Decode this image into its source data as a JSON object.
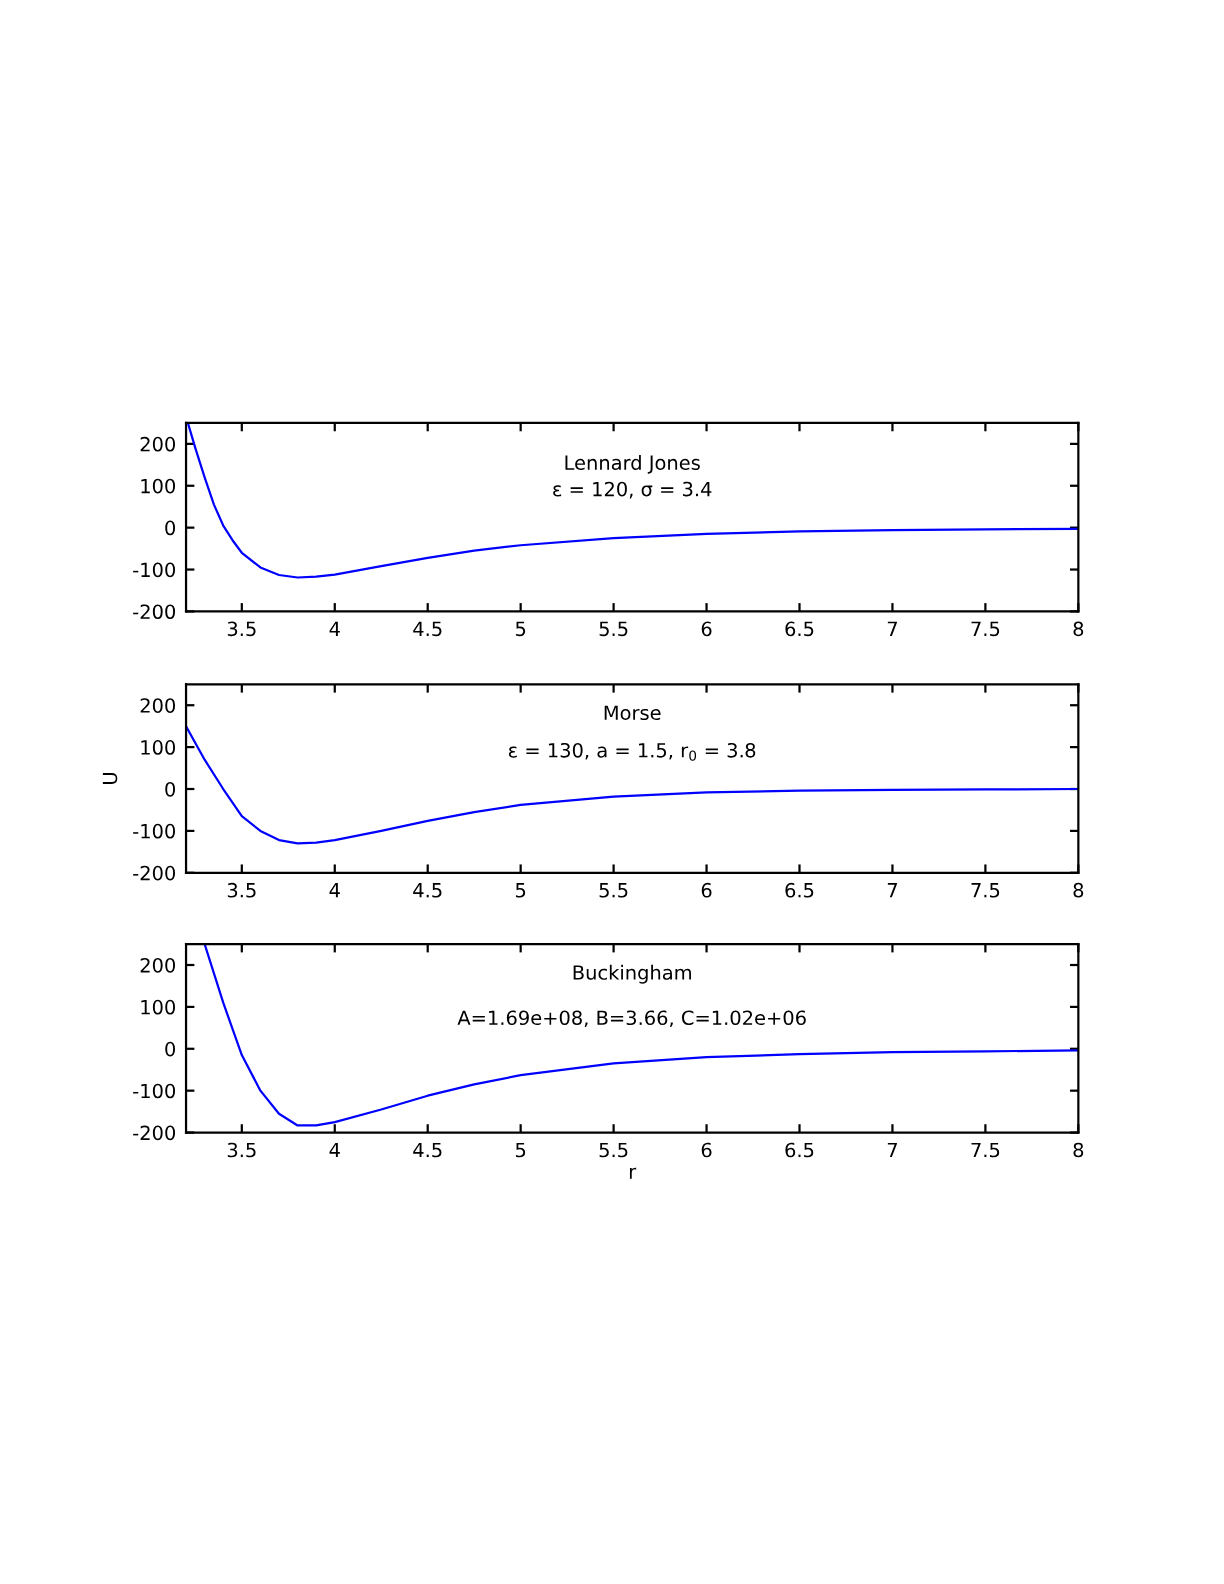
{
  "chart_data": [
    {
      "type": "line",
      "annotations": [
        "Lennard Jones",
        "ε = 120, σ = 3.4"
      ],
      "xlim": [
        3.2,
        8
      ],
      "ylim": [
        -200,
        250
      ],
      "xticks": [
        3.5,
        4,
        4.5,
        5,
        5.5,
        6,
        6.5,
        7,
        7.5,
        8
      ],
      "yticks": [
        -200,
        -100,
        0,
        100,
        200
      ],
      "grid": false,
      "legend": false,
      "series": [
        {
          "color": "#0000ff",
          "x": [
            3.21,
            3.25,
            3.3,
            3.35,
            3.4,
            3.45,
            3.5,
            3.6,
            3.7,
            3.8,
            3.9,
            4.0,
            4.25,
            4.5,
            4.75,
            5,
            5.5,
            6,
            6.5,
            7,
            7.5,
            8
          ],
          "values": [
            250,
            190,
            120,
            55,
            5,
            -30,
            -60,
            -95,
            -113,
            -119,
            -117,
            -112,
            -92,
            -72,
            -55,
            -42,
            -25,
            -15,
            -9,
            -6,
            -4,
            -3
          ]
        }
      ]
    },
    {
      "type": "line",
      "ylabel": "U",
      "annotations": [
        "Morse",
        "ε = 130, a = 1.5, r$_{0}$ = 3.8"
      ],
      "xlim": [
        3.2,
        8
      ],
      "ylim": [
        -200,
        250
      ],
      "xticks": [
        3.5,
        4,
        4.5,
        5,
        5.5,
        6,
        6.5,
        7,
        7.5,
        8
      ],
      "yticks": [
        -200,
        -100,
        0,
        100,
        200
      ],
      "grid": false,
      "legend": false,
      "series": [
        {
          "color": "#0000ff",
          "x": [
            3.2,
            3.3,
            3.4,
            3.5,
            3.6,
            3.7,
            3.8,
            3.9,
            4.0,
            4.25,
            4.5,
            4.75,
            5,
            5.5,
            6,
            6.5,
            7,
            7.5,
            8
          ],
          "values": [
            150,
            70,
            0,
            -65,
            -100,
            -122,
            -130,
            -128,
            -122,
            -100,
            -76,
            -55,
            -38,
            -18,
            -8,
            -4,
            -2,
            -1,
            0
          ]
        }
      ]
    },
    {
      "type": "line",
      "xlabel": "r",
      "annotations": [
        "Buckingham",
        "A=1.69e+08, B=3.66, C=1.02e+06"
      ],
      "xlim": [
        3.2,
        8
      ],
      "ylim": [
        -200,
        250
      ],
      "xticks": [
        3.5,
        4,
        4.5,
        5,
        5.5,
        6,
        6.5,
        7,
        7.5,
        8
      ],
      "yticks": [
        -200,
        -100,
        0,
        100,
        200
      ],
      "grid": false,
      "legend": false,
      "series": [
        {
          "color": "#0000ff",
          "x": [
            3.3,
            3.4,
            3.5,
            3.6,
            3.7,
            3.8,
            3.9,
            4.0,
            4.25,
            4.5,
            4.75,
            5,
            5.5,
            6,
            6.5,
            7,
            7.5,
            8
          ],
          "values": [
            250,
            110,
            -15,
            -100,
            -155,
            -183,
            -183,
            -175,
            -145,
            -112,
            -85,
            -63,
            -35,
            -20,
            -13,
            -8,
            -6,
            -4
          ]
        }
      ]
    }
  ]
}
